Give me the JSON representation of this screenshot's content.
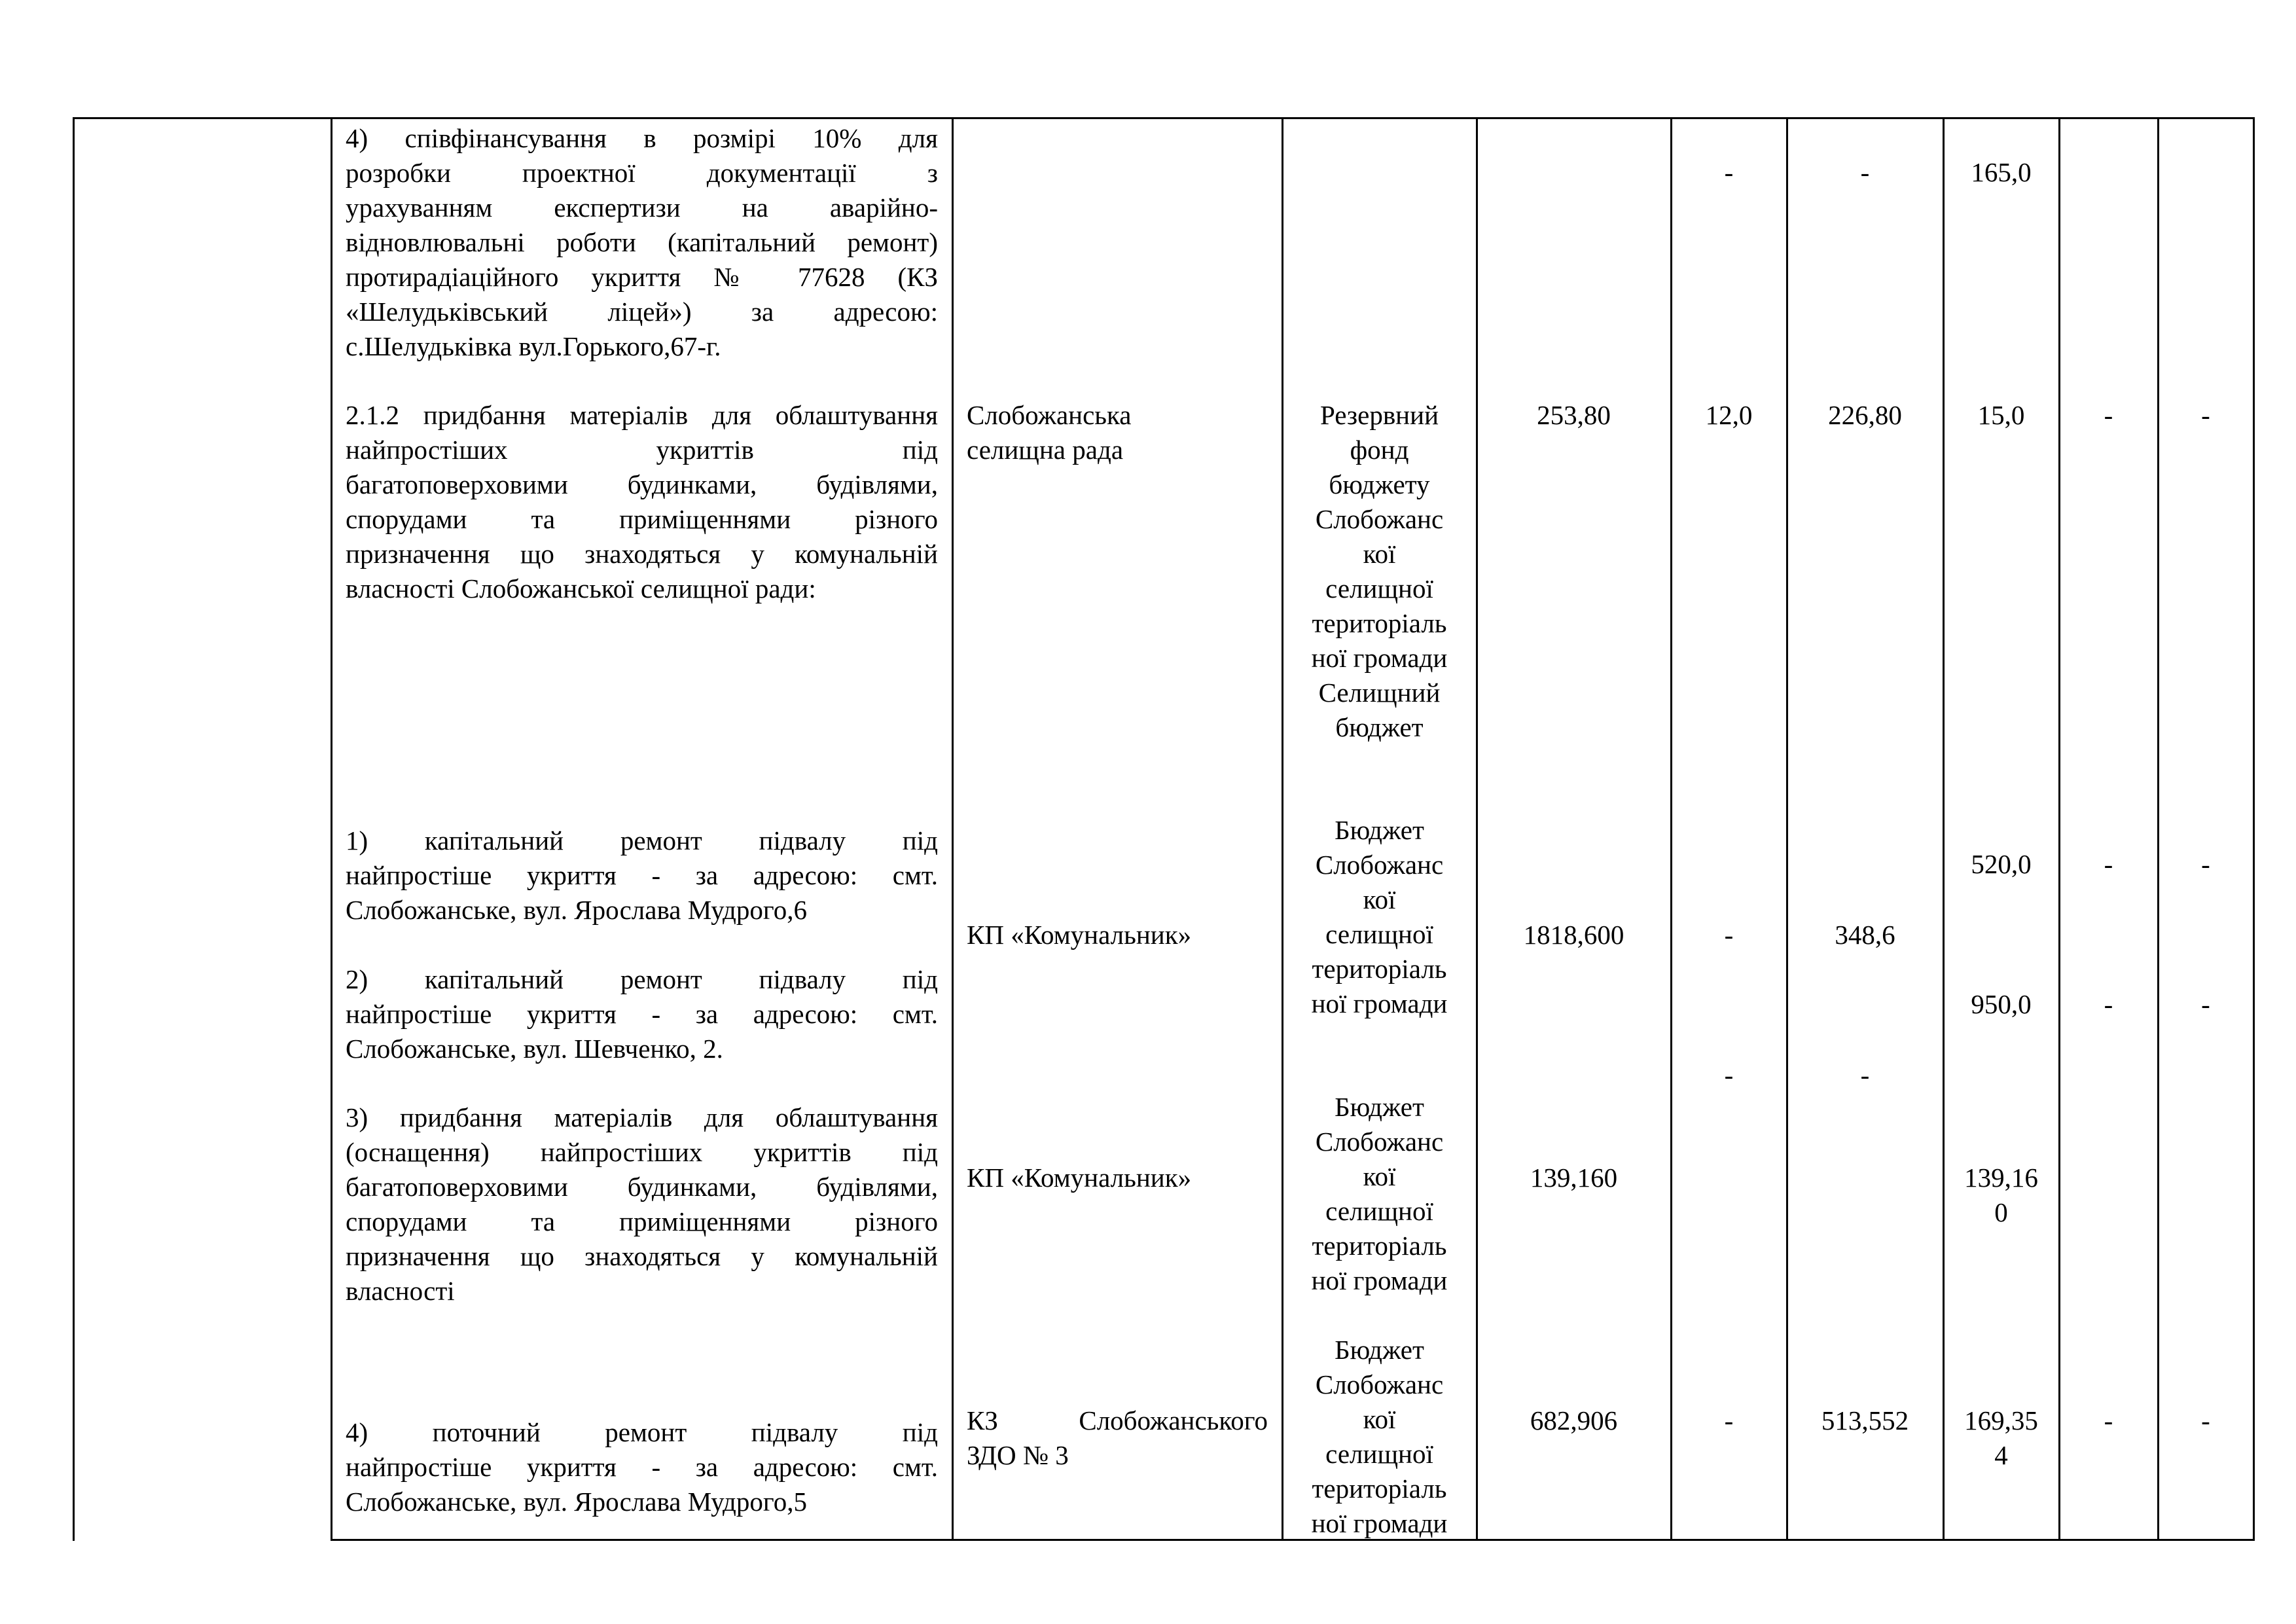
{
  "rows": [
    {
      "description": [
        "4) співфінансування в розмірі 10% для",
        "розробки проектної документації з",
        "урахуванням експертизи на аварійно-",
        "відновлювальні роботи (капітальний ремонт)",
        "протирадіаційного укриття № 77628 (КЗ",
        "«Шелудьківський ліцей») за адресою:",
        "с.Шелудьківка вул.Горького,67-г."
      ],
      "col6": "-",
      "col7": "-",
      "col8": "165,0"
    },
    {
      "description": [
        "2.1.2 придбання матеріалів для облаштування",
        "найпростіших укриттів під",
        "багатоповерховими будинками, будівлями,",
        "спорудами та приміщеннями різного",
        "призначення що знаходяться у комунальній",
        "власності Слобожанської селищної ради:"
      ],
      "executor": [
        "Слобожанська",
        "селищна рада"
      ],
      "source": [
        "Резервний",
        "фонд",
        "бюджету",
        "Слобожанс",
        "кої",
        "селищної",
        "територіаль",
        "ної громади",
        "Селищний",
        "бюджет"
      ],
      "total": "253,80",
      "col6": "12,0",
      "col7": "226,80",
      "col8": "15,0",
      "col9": "-",
      "col10": "-"
    },
    {
      "description": [
        "1) капітальний ремонт підвалу під",
        "найпростіше укриття - за адресою: смт.",
        "Слобожанське, вул. Ярослава Мудрого,6"
      ],
      "col8": "520,0",
      "col9": "-",
      "col10": "-"
    },
    {
      "executor": [
        "КП «Комунальник»"
      ],
      "source": [
        "Бюджет",
        "Слобожанс",
        "кої",
        "селищної",
        "територіаль",
        "ної громади"
      ],
      "total": "1818,600",
      "col6": "-",
      "col7": "348,6"
    },
    {
      "description": [
        "2) капітальний ремонт підвалу під",
        "найпростіше укриття - за адресою: смт.",
        "Слобожанське, вул. Шевченко, 2."
      ],
      "col8": "950,0",
      "col9": "-",
      "col10": "-",
      "col6_extra": "-",
      "col7_extra": "-"
    },
    {
      "description": [
        "3) придбання матеріалів для облаштування",
        "(оснащення) найпростіших укриттів під",
        "багатоповерховими будинками, будівлями,",
        "спорудами та приміщеннями різного",
        "призначення що знаходяться у комунальній",
        "власності"
      ],
      "executor": [
        "КП «Комунальник»"
      ],
      "source": [
        "Бюджет",
        "Слобожанс",
        "кої",
        "селищної",
        "територіаль",
        "ної громади"
      ],
      "total": "139,160",
      "col8": [
        "139,16",
        "0"
      ]
    },
    {
      "description": [
        "4) поточний ремонт підвалу під",
        "найпростіше укриття - за адресою: смт.",
        "Слобожанське, вул. Ярослава Мудрого,5"
      ],
      "executor": [
        "КЗ Слобожанського",
        "ЗДО № 3"
      ],
      "source": [
        "Бюджет",
        "Слобожанс",
        "кої",
        "селищної",
        "територіаль",
        "ної громади"
      ],
      "total": "682,906",
      "col6": "-",
      "col7": "513,552",
      "col8": [
        "169,35",
        "4"
      ],
      "col9": "-",
      "col10": "-"
    }
  ]
}
